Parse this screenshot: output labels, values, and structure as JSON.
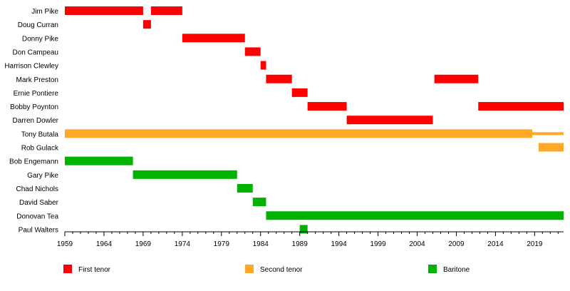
{
  "chart_data": {
    "type": "timeline",
    "title": "",
    "xlabel": "",
    "ylabel": "",
    "xlim": [
      1959,
      2022.7
    ],
    "ticks": [
      1959,
      1964,
      1969,
      1974,
      1979,
      1984,
      1989,
      1994,
      1999,
      2004,
      2009,
      2014,
      2019
    ],
    "members": [
      "Jim Pike",
      "Doug Curran",
      "Donny Pike",
      "Don Campeau",
      "Harrison Clewley",
      "Mark Preston",
      "Ernie Pontiere",
      "Bobby Poynton",
      "Darren Dowler",
      "Tony Butala",
      "Rob Gulack",
      "Bob Engemann",
      "Gary Pike",
      "Chad Nichols",
      "David Saber",
      "Donovan Tea",
      "Paul Walters"
    ],
    "legend": [
      {
        "role": "first",
        "label": "First tenor",
        "color": "#ff0000"
      },
      {
        "role": "second",
        "label": "Second tenor",
        "color": "#ffa726"
      },
      {
        "role": "baritone",
        "label": "Baritone",
        "color": "#00b300"
      }
    ],
    "bars": [
      {
        "member": "Jim Pike",
        "role": "first",
        "start": 1959,
        "end": 1969
      },
      {
        "member": "Jim Pike",
        "role": "first",
        "start": 1970,
        "end": 1974
      },
      {
        "member": "Doug Curran",
        "role": "first",
        "start": 1969,
        "end": 1970
      },
      {
        "member": "Donny Pike",
        "role": "first",
        "start": 1974,
        "end": 1982
      },
      {
        "member": "Don Campeau",
        "role": "first",
        "start": 1982,
        "end": 1984
      },
      {
        "member": "Harrison Clewley",
        "role": "first",
        "start": 1984,
        "end": 1984.7
      },
      {
        "member": "Mark Preston",
        "role": "first",
        "start": 1984.7,
        "end": 1988
      },
      {
        "member": "Mark Preston",
        "role": "first",
        "start": 2006.2,
        "end": 2011.8
      },
      {
        "member": "Ernie Pontiere",
        "role": "first",
        "start": 1988,
        "end": 1990
      },
      {
        "member": "Bobby Poynton",
        "role": "first",
        "start": 1990,
        "end": 1995
      },
      {
        "member": "Bobby Poynton",
        "role": "first",
        "start": 2011.8,
        "end": 2022.7
      },
      {
        "member": "Darren Dowler",
        "role": "first",
        "start": 1995,
        "end": 2006
      },
      {
        "member": "Tony Butala",
        "role": "second",
        "start": 1959,
        "end": 2018.7
      },
      {
        "member": "Tony Butala",
        "role": "second",
        "start": 2018.7,
        "end": 2022.7,
        "thin": true
      },
      {
        "member": "Rob Gulack",
        "role": "second",
        "start": 2019.5,
        "end": 2022.7
      },
      {
        "member": "Bob Engemann",
        "role": "baritone",
        "start": 1959,
        "end": 1967.7
      },
      {
        "member": "Gary Pike",
        "role": "baritone",
        "start": 1967.7,
        "end": 1981
      },
      {
        "member": "Chad Nichols",
        "role": "baritone",
        "start": 1981,
        "end": 1983
      },
      {
        "member": "David Saber",
        "role": "baritone",
        "start": 1983,
        "end": 1984.7
      },
      {
        "member": "Donovan Tea",
        "role": "baritone",
        "start": 1984.7,
        "end": 2022.7
      },
      {
        "member": "Paul Walters",
        "role": "baritone",
        "start": 1989,
        "end": 1990
      }
    ]
  }
}
